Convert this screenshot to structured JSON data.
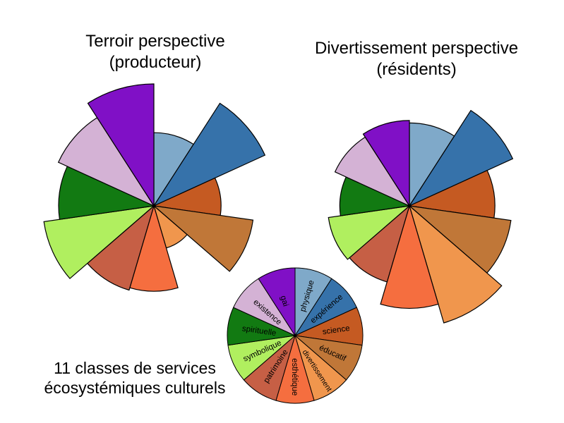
{
  "categories": [
    "physique",
    "expérience",
    "science",
    "éducatif",
    "divertissement",
    "esthétique",
    "patrimoine",
    "symbolique",
    "spirituelle",
    "existence",
    "gai"
  ],
  "colors": [
    "#7fa9c9",
    "#3672aa",
    "#c55a22",
    "#c07738",
    "#f0964d",
    "#f56e3f",
    "#c65f45",
    "#b0ef5f",
    "#127a12",
    "#d4b2d5",
    "#8010c6"
  ],
  "caption": {
    "line1": "11 classes de services",
    "line2": "écosystémiques culturels"
  },
  "chart_data": [
    {
      "type": "polar-area",
      "title_line1": "Terroir perspective",
      "title_line2": "(producteur)",
      "categories": [
        "physique",
        "expérience",
        "science",
        "éducatif",
        "divertissement",
        "esthétique",
        "patrimoine",
        "symbolique",
        "spirituelle",
        "existence",
        "gai"
      ],
      "values": [
        60,
        100,
        55,
        82,
        36,
        70,
        72,
        91,
        78,
        86,
        100
      ]
    },
    {
      "type": "polar-area",
      "title_line1": "Divertissement perspective",
      "title_line2": "(résidents)",
      "categories": [
        "physique",
        "expérience",
        "science",
        "éducatif",
        "divertissement",
        "esthétique",
        "patrimoine",
        "symbolique",
        "spirituelle",
        "existence",
        "gai"
      ],
      "values": [
        68,
        93,
        70,
        84,
        100,
        84,
        65,
        67,
        57,
        67,
        70
      ]
    },
    {
      "type": "pie",
      "categories": [
        "physique",
        "expérience",
        "science",
        "éducatif",
        "divertissement",
        "esthétique",
        "patrimoine",
        "symbolique",
        "spirituelle",
        "existence",
        "gai"
      ],
      "values": [
        1,
        1,
        1,
        1,
        1,
        1,
        1,
        1,
        1,
        1,
        1
      ]
    }
  ]
}
